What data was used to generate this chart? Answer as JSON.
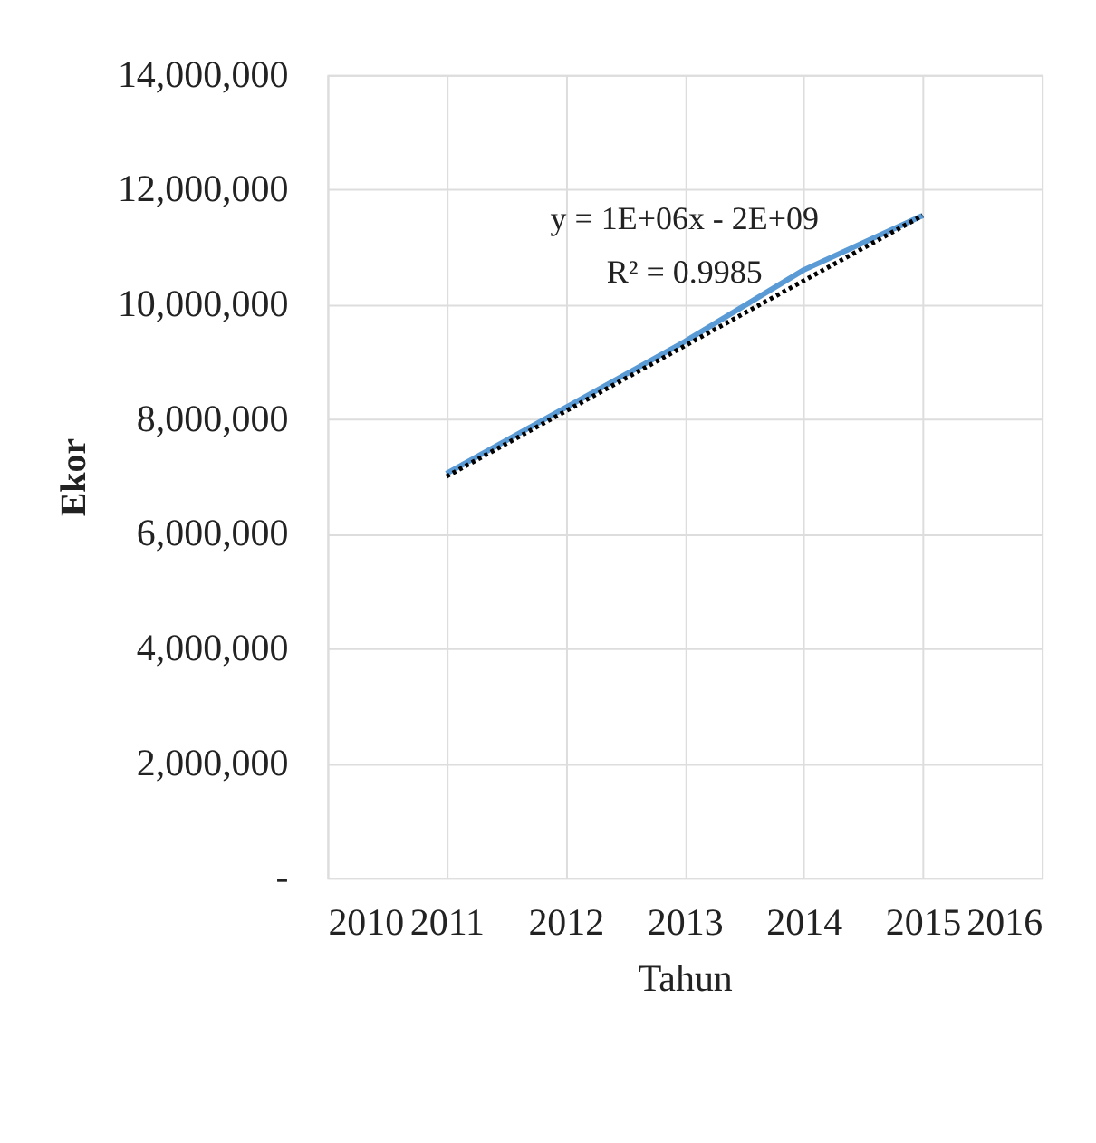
{
  "chart_data": {
    "type": "line",
    "xlabel": "Tahun",
    "ylabel": "Ekor",
    "x": [
      2011,
      2012,
      2013,
      2014,
      2015
    ],
    "series": [
      {
        "color": "#5b9bd5",
        "values": [
          7050000,
          8200000,
          9350000,
          10600000,
          11550000
        ],
        "line_style": "solid"
      },
      {
        "type": "line",
        "color": "#000000",
        "x": [
          2011,
          2015
        ],
        "values": [
          7000000,
          11550000
        ],
        "line_style": "dotted"
      }
    ],
    "xlim": [
      2010,
      2016
    ],
    "xticks": [
      2010,
      2011,
      2012,
      2013,
      2014,
      2015,
      2016
    ],
    "ylim": [
      0,
      14000000
    ],
    "yticks": [
      {
        "value": 0,
        "label": "-"
      },
      {
        "value": 2000000,
        "label": "2,000,000"
      },
      {
        "value": 4000000,
        "label": "4,000,000"
      },
      {
        "value": 6000000,
        "label": "6,000,000"
      },
      {
        "value": 8000000,
        "label": "8,000,000"
      },
      {
        "value": 10000000,
        "label": "10,000,000"
      },
      {
        "value": 12000000,
        "label": "12,000,000"
      },
      {
        "value": 14000000,
        "label": "14,000,000"
      }
    ],
    "annotations": [
      "y = 1E+06x - 2E+09",
      "R² = 0.9985"
    ],
    "grid": true,
    "marker": "none"
  }
}
